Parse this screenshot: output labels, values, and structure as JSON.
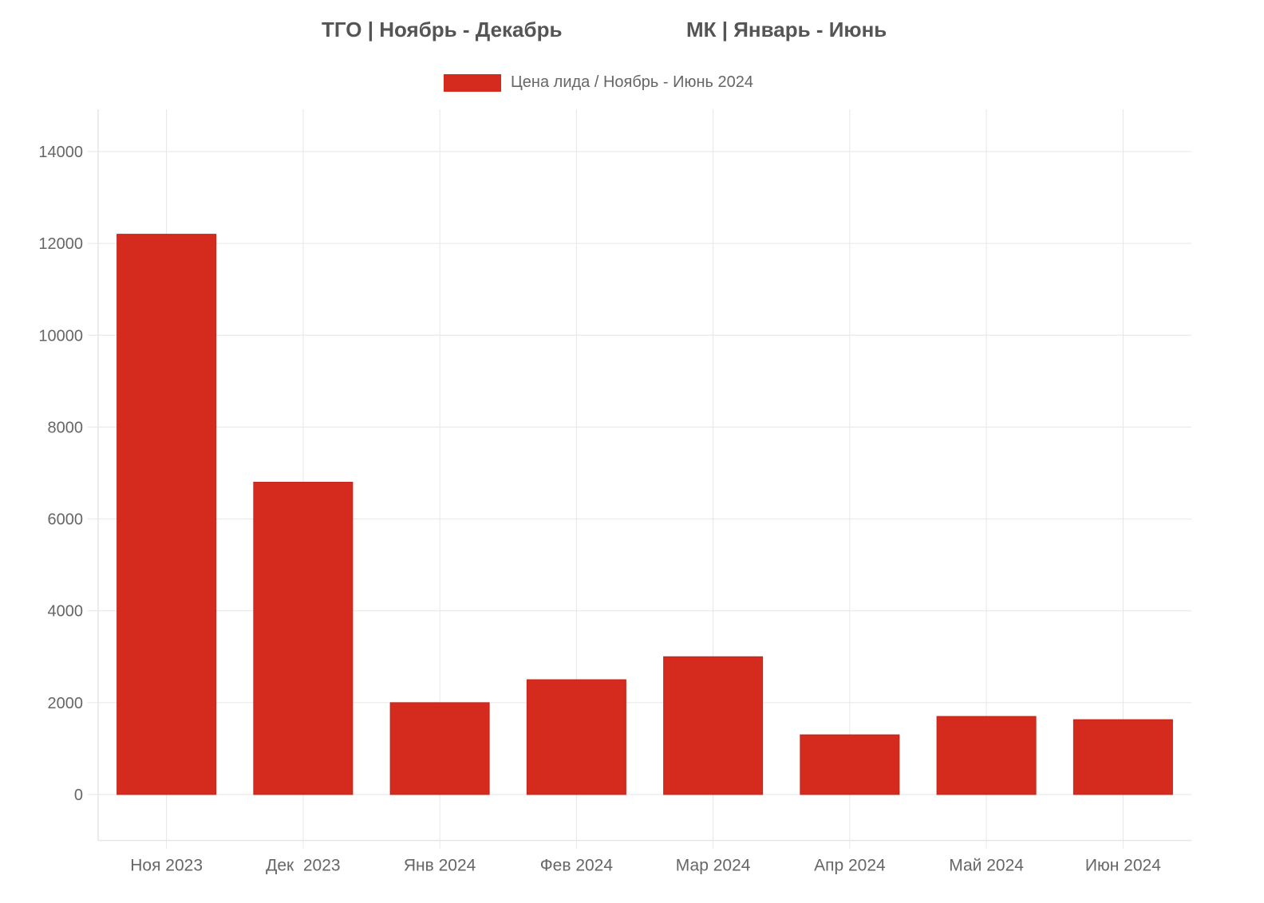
{
  "headlines": {
    "left": "ТГО | Ноябрь - Декабрь",
    "right": "МК | Январь - Июнь"
  },
  "colors": {
    "bar": "#d52a1e",
    "grid": "#e6e6e6",
    "tick_text": "#666666"
  },
  "chart_data": {
    "type": "bar",
    "title": "",
    "xlabel": "",
    "ylabel": "",
    "categories": [
      "Ноя 2023",
      "Дек  2023",
      "Янв 2024",
      "Фев 2024",
      "Мар 2024",
      "Апр 2024",
      "Май 2024",
      "Июн 2024"
    ],
    "series": [
      {
        "name": "Цена лида / Ноябрь - Июнь 2024",
        "values": [
          12200,
          6800,
          2000,
          2500,
          3000,
          1300,
          1700,
          1630
        ]
      }
    ],
    "ylim": [
      -1000,
      15000
    ],
    "yticks": [
      0,
      2000,
      4000,
      6000,
      8000,
      10000,
      12000,
      14000
    ],
    "grid": true,
    "legend_position": "top-center"
  }
}
